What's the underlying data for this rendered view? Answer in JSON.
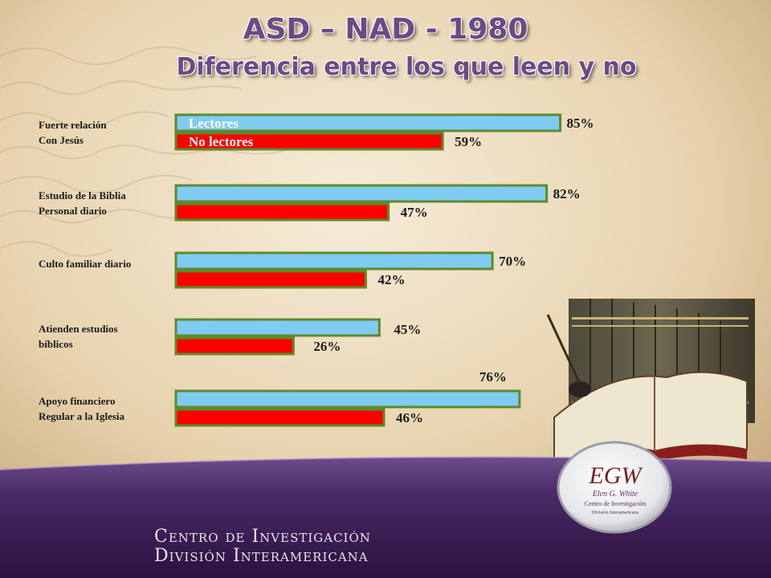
{
  "header": {
    "title": "ASD – NAD - 1980",
    "subtitle": "Diferencia entre los que leen y no"
  },
  "chart_data": {
    "type": "bar",
    "orientation": "horizontal",
    "categories": [
      "Fuerte relación\nCon Jesús",
      "Estudio de la Biblia\nPersonal diario",
      "Culto familiar diario",
      "Atienden estudios\nbíblicos",
      "Apoyo financiero\nRegular a la Iglesia"
    ],
    "series": [
      {
        "name": "Lectores",
        "values": [
          85,
          82,
          70,
          45,
          76
        ],
        "labels": [
          "85%",
          "82%",
          "70%",
          "45%",
          "76%"
        ],
        "color": "#7fcbf1"
      },
      {
        "name": "No lectores",
        "values": [
          59,
          47,
          42,
          26,
          46
        ],
        "labels": [
          "59%",
          "47%",
          "42%",
          "26%",
          "46%"
        ],
        "color": "#ff0000"
      }
    ],
    "bar_border_color": "#5d8a2a",
    "xlim": [
      0,
      100
    ],
    "legend": "inside-first-bars",
    "grid": false
  },
  "footer": {
    "line1": "Centro de Investigación",
    "line2": "División Interamericana"
  },
  "logo": {
    "initials": "EGW",
    "line1": "Elen G. White",
    "line2": "Centro de Investigación",
    "line3": "División Interamericana"
  },
  "colors": {
    "title": "#6b4a86",
    "footer_band": "#3a1e52",
    "background": "#e8d6b8"
  }
}
